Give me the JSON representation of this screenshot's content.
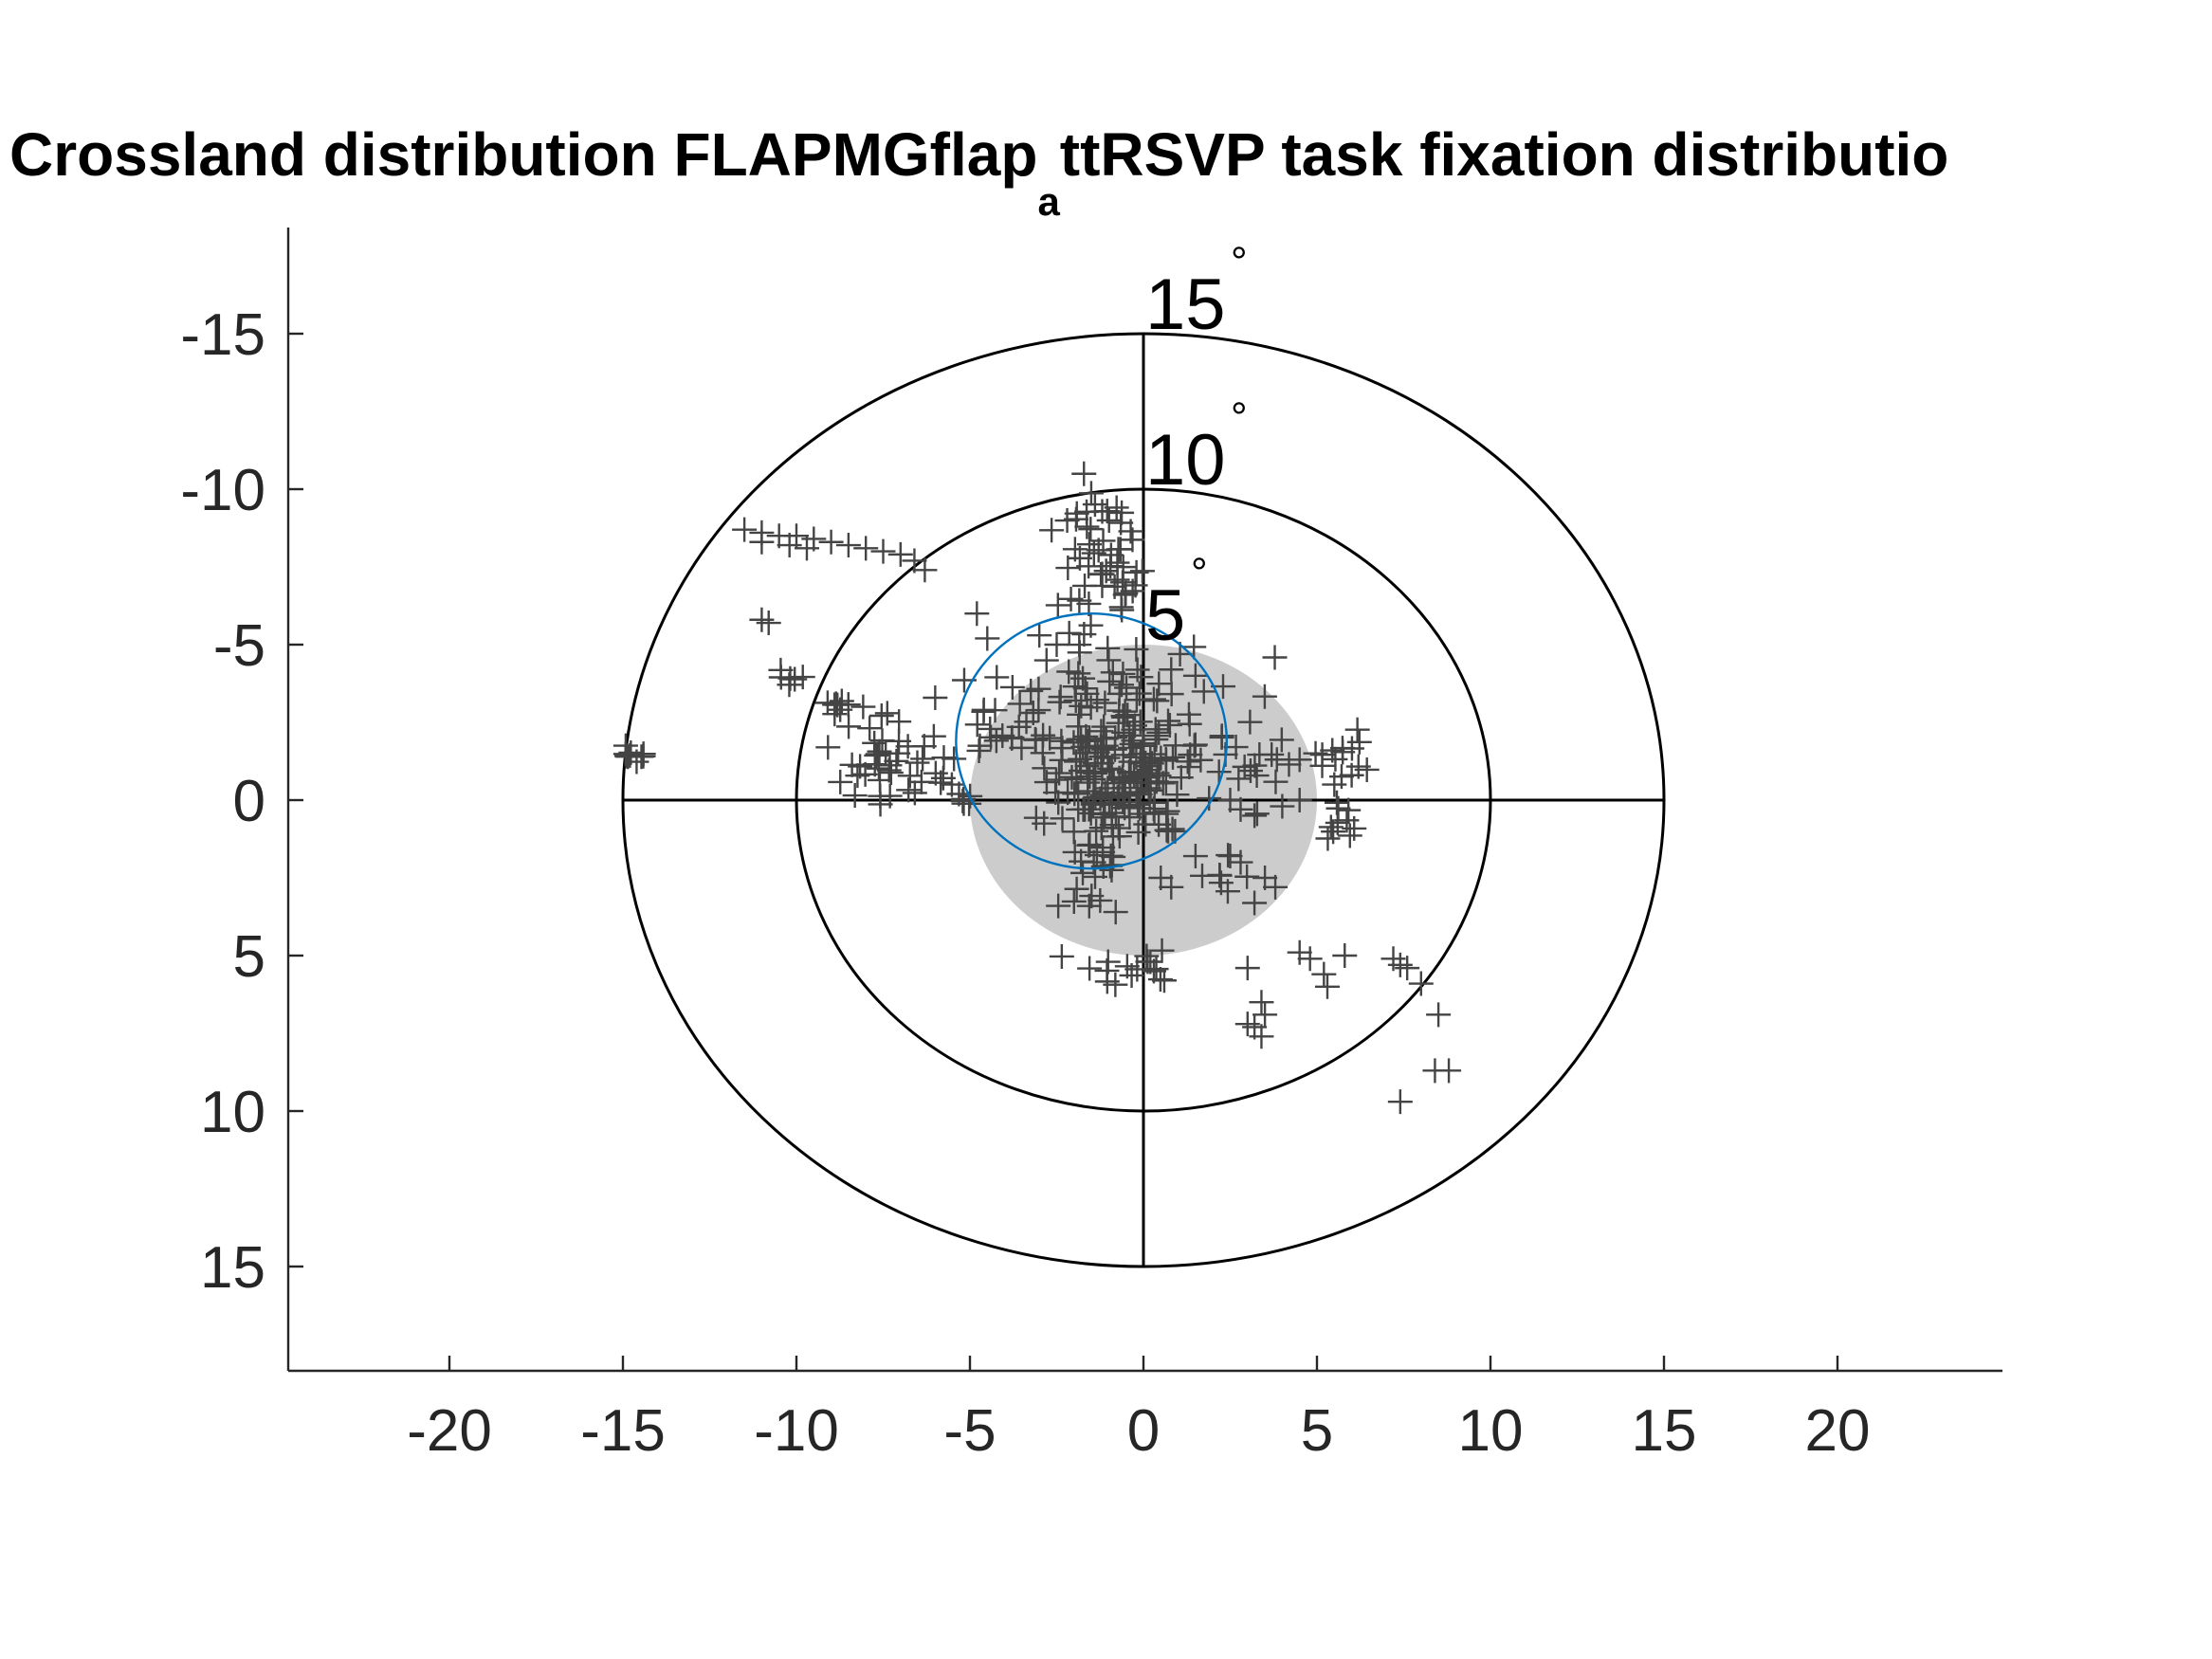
{
  "chart_data": {
    "type": "scatter",
    "title": {
      "prefix": "Crossland distribution FLAPMGflap",
      "subscript": "a",
      "suffix": "ttRSVP task fixation distributio"
    },
    "xlabel": "",
    "ylabel": "",
    "xlim": [
      -25,
      25
    ],
    "ylim": [
      -18,
      18
    ],
    "y_direction": "reversed",
    "grid": false,
    "x_ticks": [
      -20,
      -15,
      -10,
      -5,
      0,
      5,
      10,
      15,
      20
    ],
    "x_tick_labels": [
      "-20",
      "-15",
      "-10",
      "-5",
      "0",
      "5",
      "10",
      "15",
      "20"
    ],
    "y_ticks": [
      -15,
      -10,
      -5,
      0,
      5,
      10,
      15
    ],
    "y_tick_labels": [
      "-15",
      "-10",
      "-5",
      "0",
      "5",
      "10",
      "15"
    ],
    "rings": [
      {
        "radius": 15,
        "label": "15",
        "degree": "°"
      },
      {
        "radius": 10,
        "label": "10",
        "degree": "°"
      },
      {
        "radius": 5,
        "label": "5",
        "degree": "°"
      }
    ],
    "central_disc": {
      "cx": 0,
      "cy": 0,
      "r": 5,
      "color": "#cccccc"
    },
    "bcea_ellipse": {
      "cx": -1.5,
      "cy": -1.9,
      "rx": 3.9,
      "ry": 4.1,
      "color": "#0072bd"
    },
    "crosshair_color": "#000000",
    "marker": {
      "symbol": "+",
      "color": "#444444"
    },
    "clusters": [
      {
        "cx": -0.8,
        "cy": -0.5,
        "sx": 1.0,
        "sy": 1.0,
        "n": 130
      },
      {
        "cx": -0.3,
        "cy": -2.0,
        "sx": 1.5,
        "sy": 1.3,
        "n": 70
      },
      {
        "cx": -1.5,
        "cy": -3.0,
        "sx": 1.8,
        "sy": 1.2,
        "n": 40
      },
      {
        "cx": -1.2,
        "cy": -8.8,
        "sx": 0.5,
        "sy": 0.5,
        "n": 24
      },
      {
        "cx": -0.7,
        "cy": -7.2,
        "sx": 0.5,
        "sy": 0.7,
        "n": 18
      },
      {
        "cx": -1.6,
        "cy": -6.2,
        "sx": 0.6,
        "sy": 0.6,
        "n": 14
      },
      {
        "cx": -7.8,
        "cy": -1.5,
        "sx": 0.8,
        "sy": 0.7,
        "n": 30
      },
      {
        "cx": -6.5,
        "cy": -1.2,
        "sx": 0.7,
        "sy": 0.6,
        "n": 14
      },
      {
        "cx": -4.2,
        "cy": -2.0,
        "sx": 0.9,
        "sy": 0.8,
        "n": 18
      },
      {
        "cx": 3.8,
        "cy": -1.2,
        "sx": 1.2,
        "sy": 0.5,
        "n": 18
      },
      {
        "cx": 5.8,
        "cy": -1.6,
        "sx": 0.4,
        "sy": 0.4,
        "n": 10
      },
      {
        "cx": 5.6,
        "cy": 0.5,
        "sx": 0.3,
        "sy": 0.5,
        "n": 10
      },
      {
        "cx": -1.2,
        "cy": 1.9,
        "sx": 0.4,
        "sy": 0.3,
        "n": 12
      },
      {
        "cx": -0.5,
        "cy": 5.3,
        "sx": 0.7,
        "sy": 0.3,
        "n": 14
      },
      {
        "cx": 2.3,
        "cy": 2.6,
        "sx": 0.6,
        "sy": 0.5,
        "n": 8
      },
      {
        "cx": -14.7,
        "cy": -1.6,
        "sx": 0.3,
        "sy": 0.15,
        "n": 10
      },
      {
        "cx": -10.0,
        "cy": -3.8,
        "sx": 0.2,
        "sy": 0.15,
        "n": 6
      },
      {
        "cx": -8.8,
        "cy": -3.1,
        "sx": 0.3,
        "sy": 0.15,
        "n": 8
      },
      {
        "cx": -5.0,
        "cy": 0.0,
        "sx": 0.2,
        "sy": 0.2,
        "n": 6
      },
      {
        "cx": -1.6,
        "cy": 3.2,
        "sx": 0.3,
        "sy": 0.2,
        "n": 6
      }
    ],
    "points": [
      [
        -11.5,
        -8.7
      ],
      [
        -11.0,
        -8.6
      ],
      [
        -10.5,
        -8.5
      ],
      [
        -10.0,
        -8.5
      ],
      [
        -9.5,
        -8.4
      ],
      [
        -9.0,
        -8.3
      ],
      [
        -8.5,
        -8.2
      ],
      [
        -8.0,
        -8.1
      ],
      [
        -7.5,
        -8.0
      ],
      [
        -7.0,
        -7.9
      ],
      [
        -6.6,
        -7.7
      ],
      [
        -11.0,
        -8.3
      ],
      [
        -10.2,
        -8.2
      ],
      [
        -9.7,
        -8.1
      ],
      [
        -6.3,
        -7.4
      ],
      [
        -11.0,
        -5.8
      ],
      [
        -10.8,
        -5.7
      ],
      [
        -4.8,
        -6.0
      ],
      [
        -4.5,
        -5.2
      ],
      [
        -3.0,
        -5.3
      ],
      [
        -2.5,
        -5.0
      ],
      [
        -1.0,
        -4.5
      ],
      [
        0.8,
        -4.2
      ],
      [
        1.5,
        -4.0
      ],
      [
        4.5,
        -1.3
      ],
      [
        6.0,
        -0.8
      ],
      [
        5.5,
        -0.5
      ],
      [
        2.5,
        0.0
      ],
      [
        2.8,
        0.3
      ],
      [
        3.2,
        0.5
      ],
      [
        4.0,
        0.2
      ],
      [
        4.5,
        0.0
      ],
      [
        3.5,
        2.5
      ],
      [
        3.8,
        2.8
      ],
      [
        2.8,
        2.0
      ],
      [
        2.5,
        1.8
      ],
      [
        0.5,
        2.5
      ],
      [
        0.8,
        2.8
      ],
      [
        1.5,
        1.8
      ],
      [
        -0.8,
        3.6
      ],
      [
        0.3,
        5.5
      ],
      [
        0.6,
        5.8
      ],
      [
        0.2,
        5.2
      ],
      [
        3.0,
        5.4
      ],
      [
        3.4,
        6.5
      ],
      [
        3.5,
        6.9
      ],
      [
        3.2,
        7.3
      ],
      [
        3.4,
        7.6
      ],
      [
        3.0,
        7.2
      ],
      [
        4.5,
        4.9
      ],
      [
        4.8,
        5.1
      ],
      [
        5.2,
        5.6
      ],
      [
        5.3,
        6.0
      ],
      [
        5.8,
        5.0
      ],
      [
        7.2,
        5.1
      ],
      [
        7.4,
        5.3
      ],
      [
        7.6,
        5.4
      ],
      [
        8.0,
        5.9
      ],
      [
        8.5,
        6.9
      ],
      [
        8.4,
        8.7
      ],
      [
        8.8,
        8.7
      ],
      [
        7.4,
        9.7
      ]
    ]
  }
}
